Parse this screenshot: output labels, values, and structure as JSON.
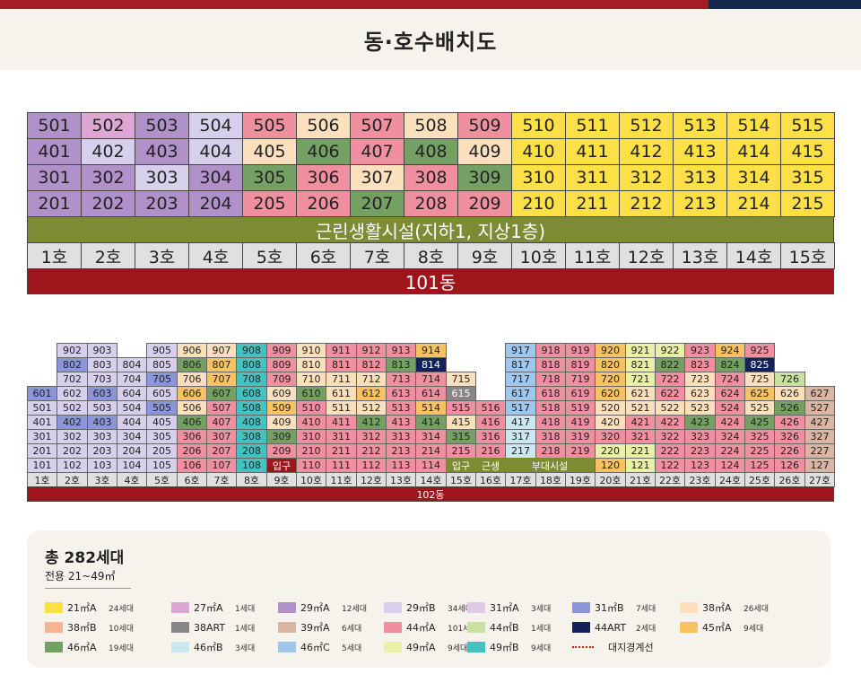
{
  "title": "동·호수배치도",
  "palette": {
    "P29A": "#b091c9",
    "P27A": "#dea6d2",
    "P29B": "#d6d0ec",
    "P44A": "#ef8fa0",
    "P38A": "#f4b592",
    "P38M": "#fce0bd",
    "P46A": "#74a063",
    "P31A": "#dfc9e6",
    "P31B": "#8a96d8",
    "P44ART": "#13235a",
    "P21A": "#fde046",
    "P45A": "#f7c260",
    "P39A": "#d8b6a3",
    "P44B": "#c6e1a0",
    "P46B": "#cde7f1",
    "P46C": "#9fc7ec",
    "P49A": "#e9f0a7",
    "P49B": "#44c2c0",
    "PNONE": "#e0e0e0",
    "PBASE": "#7d8b34",
    "PRED": "#a0151c"
  },
  "building_101": {
    "rows": [
      {
        "units": [
          "501",
          "502",
          "503",
          "504",
          "505",
          "506",
          "507",
          "508",
          "509",
          "510",
          "511",
          "512",
          "513",
          "514",
          "515"
        ],
        "colors": [
          "P29A",
          "P27A",
          "P29A",
          "P29B",
          "P44A",
          "P38M",
          "P44A",
          "P38M",
          "P44A",
          "P21A",
          "P21A",
          "P21A",
          "P21A",
          "P21A",
          "P21A"
        ]
      },
      {
        "units": [
          "401",
          "402",
          "403",
          "404",
          "405",
          "406",
          "407",
          "408",
          "409",
          "410",
          "411",
          "412",
          "413",
          "414",
          "415"
        ],
        "colors": [
          "P29A",
          "P29B",
          "P29A",
          "P29B",
          "P38M",
          "P46A",
          "P44A",
          "P46A",
          "P38M",
          "P21A",
          "P21A",
          "P21A",
          "P21A",
          "P21A",
          "P21A"
        ]
      },
      {
        "units": [
          "301",
          "302",
          "303",
          "304",
          "305",
          "306",
          "307",
          "308",
          "309",
          "310",
          "311",
          "312",
          "313",
          "314",
          "315"
        ],
        "colors": [
          "P29A",
          "P29A",
          "P29B",
          "P29A",
          "P46A",
          "P44A",
          "P38M",
          "P44A",
          "P46A",
          "P21A",
          "P21A",
          "P21A",
          "P21A",
          "P21A",
          "P21A"
        ]
      },
      {
        "units": [
          "201",
          "202",
          "203",
          "204",
          "205",
          "206",
          "207",
          "208",
          "209",
          "210",
          "211",
          "212",
          "213",
          "214",
          "215"
        ],
        "colors": [
          "P29A",
          "P29A",
          "P29A",
          "P29A",
          "P44A",
          "P44A",
          "P46A",
          "P44A",
          "P44A",
          "P21A",
          "P21A",
          "P21A",
          "P21A",
          "P21A",
          "P21A"
        ]
      }
    ],
    "commercial": "근린생활시설(지하1, 지상1층)",
    "lines": [
      "1호",
      "2호",
      "3호",
      "4호",
      "5호",
      "6호",
      "7호",
      "8호",
      "9호",
      "10호",
      "11호",
      "12호",
      "13호",
      "14호",
      "15호"
    ],
    "name": "101동"
  },
  "building_102": {
    "rows": [
      {
        "units": [
          "",
          "902",
          "903",
          "",
          "905",
          "906",
          "907",
          "908",
          "909",
          "910",
          "911",
          "912",
          "913",
          "914",
          "",
          "",
          "917",
          "918",
          "919",
          "920",
          "921",
          "922",
          "923",
          "924",
          "925",
          "",
          ""
        ],
        "colors": [
          "",
          "P29B",
          "P29B",
          "",
          "P29B",
          "P38M",
          "P38M",
          "P49B",
          "P44A",
          "P38M",
          "P44A",
          "P44A",
          "P44A",
          "P45A",
          "",
          "",
          "P46C",
          "P44A",
          "P44A",
          "P45A",
          "P49A",
          "P49A",
          "P44A",
          "P45A",
          "P44A",
          "",
          ""
        ]
      },
      {
        "units": [
          "",
          "802",
          "803",
          "804",
          "805",
          "806",
          "807",
          "808",
          "809",
          "810",
          "811",
          "812",
          "813",
          "814",
          "",
          "",
          "817",
          "818",
          "819",
          "820",
          "821",
          "822",
          "823",
          "824",
          "825",
          "",
          ""
        ],
        "colors": [
          "",
          "P31B",
          "P29B",
          "P29B",
          "P29B",
          "P46A",
          "P45A",
          "P49B",
          "P44A",
          "P38M",
          "P44A",
          "P44A",
          "P46A",
          "P44ART",
          "",
          "",
          "P46C",
          "P44A",
          "P44A",
          "P45A",
          "P49A",
          "P46A",
          "P44A",
          "P46A",
          "P44ART",
          "",
          ""
        ]
      },
      {
        "units": [
          "",
          "702",
          "703",
          "704",
          "705",
          "706",
          "707",
          "708",
          "709",
          "710",
          "711",
          "712",
          "713",
          "714",
          "715",
          "",
          "717",
          "718",
          "719",
          "720",
          "721",
          "722",
          "723",
          "724",
          "725",
          "726",
          ""
        ],
        "colors": [
          "",
          "P29B",
          "P29B",
          "P29B",
          "P31B",
          "P38M",
          "P45A",
          "P49B",
          "P44A",
          "P38M",
          "P38M",
          "P38M",
          "P44A",
          "P44A",
          "P38M",
          "",
          "P46C",
          "P44A",
          "P44A",
          "P45A",
          "P49A",
          "P44A",
          "P38M",
          "P44A",
          "P38M",
          "P44B",
          ""
        ]
      },
      {
        "units": [
          "601",
          "602",
          "603",
          "604",
          "605",
          "606",
          "607",
          "608",
          "609",
          "610",
          "611",
          "612",
          "613",
          "614",
          "615",
          "",
          "617",
          "618",
          "619",
          "620",
          "621",
          "622",
          "623",
          "624",
          "625",
          "626",
          "627"
        ],
        "colors": [
          "P31B",
          "P29B",
          "P31B",
          "P29B",
          "P29B",
          "P45A",
          "P46A",
          "P49B",
          "P38M",
          "P46A",
          "P38M",
          "P45A",
          "P44A",
          "P44A",
          "P38ART",
          "",
          "P46C",
          "P44A",
          "P44A",
          "P45A",
          "P38M",
          "P44A",
          "P38M",
          "P44A",
          "P45A",
          "P38M",
          "P39A"
        ]
      },
      {
        "units": [
          "501",
          "502",
          "503",
          "504",
          "505",
          "506",
          "507",
          "508",
          "509",
          "510",
          "511",
          "512",
          "513",
          "514",
          "515",
          "516",
          "517",
          "518",
          "519",
          "520",
          "521",
          "522",
          "523",
          "524",
          "525",
          "526",
          "527"
        ],
        "colors": [
          "P29B",
          "P29B",
          "P29B",
          "P29B",
          "P31B",
          "P38M",
          "P44A",
          "P49B",
          "P45A",
          "P44A",
          "P38M",
          "P38M",
          "P44A",
          "P45A",
          "P44A",
          "P44A",
          "P46C",
          "P44A",
          "P44A",
          "P38M",
          "P38M",
          "P38M",
          "P38M",
          "P44A",
          "P38M",
          "P46A",
          "P39A"
        ]
      },
      {
        "units": [
          "401",
          "402",
          "403",
          "404",
          "405",
          "406",
          "407",
          "408",
          "409",
          "410",
          "411",
          "412",
          "413",
          "414",
          "415",
          "416",
          "417",
          "418",
          "419",
          "420",
          "421",
          "422",
          "423",
          "424",
          "425",
          "426",
          "427"
        ],
        "colors": [
          "P29B",
          "P31B",
          "P31B",
          "P29B",
          "P29B",
          "P46A",
          "P44A",
          "P49B",
          "P38M",
          "P44A",
          "P44A",
          "P46A",
          "P44A",
          "P46A",
          "P38M",
          "P44A",
          "P46B",
          "P44A",
          "P44A",
          "P38M",
          "P44A",
          "P44A",
          "P46A",
          "P44A",
          "P46A",
          "P44A",
          "P39A"
        ]
      },
      {
        "units": [
          "301",
          "302",
          "303",
          "304",
          "305",
          "306",
          "307",
          "308",
          "309",
          "310",
          "311",
          "312",
          "313",
          "314",
          "315",
          "316",
          "317",
          "318",
          "319",
          "320",
          "321",
          "322",
          "323",
          "324",
          "325",
          "326",
          "327"
        ],
        "colors": [
          "P29B",
          "P29B",
          "P29B",
          "P29B",
          "P29B",
          "P44A",
          "P44A",
          "P49B",
          "P46A",
          "P44A",
          "P44A",
          "P44A",
          "P44A",
          "P44A",
          "P46A",
          "P44A",
          "P46B",
          "P44A",
          "P44A",
          "P44A",
          "P44A",
          "P44A",
          "P44A",
          "P44A",
          "P44A",
          "P44A",
          "P39A"
        ]
      },
      {
        "units": [
          "201",
          "202",
          "203",
          "204",
          "205",
          "206",
          "207",
          "208",
          "209",
          "210",
          "211",
          "212",
          "213",
          "214",
          "215",
          "216",
          "217",
          "218",
          "219",
          "220",
          "221",
          "222",
          "223",
          "224",
          "225",
          "226",
          "227"
        ],
        "colors": [
          "P29B",
          "P29B",
          "P29B",
          "P29B",
          "P29B",
          "P44A",
          "P44A",
          "P49B",
          "P44A",
          "P44A",
          "P44A",
          "P44A",
          "P44A",
          "P44A",
          "P44A",
          "P44A",
          "P46B",
          "P44A",
          "P44A",
          "P49A",
          "P49A",
          "P44A",
          "P44A",
          "P44A",
          "P44A",
          "P44A",
          "P39A"
        ]
      },
      {
        "units": [
          "101",
          "102",
          "103",
          "104",
          "105",
          "106",
          "107",
          "108",
          "입구",
          "110",
          "111",
          "112",
          "113",
          "114",
          "입구",
          "근생",
          "",
          "",
          "",
          "120",
          "121",
          "122",
          "123",
          "124",
          "125",
          "126",
          "127"
        ],
        "colors": [
          "P29B",
          "P29B",
          "P29B",
          "P29B",
          "P29B",
          "P44A",
          "P44A",
          "P49B",
          "PRED",
          "P44A",
          "P44A",
          "P44A",
          "P44A",
          "P44A",
          "PBASE",
          "PBASE",
          "PBASE",
          "PBASE",
          "PBASE",
          "P45A",
          "P49A",
          "P44A",
          "P44A",
          "P44A",
          "P44A",
          "P44A",
          "P39A"
        ]
      }
    ],
    "facility_label": "부대시설",
    "lines": [
      "1호",
      "2호",
      "3호",
      "4호",
      "5호",
      "6호",
      "7호",
      "8호",
      "9호",
      "10호",
      "11호",
      "12호",
      "13호",
      "14호",
      "15호",
      "16호",
      "17호",
      "18호",
      "19호",
      "20호",
      "21호",
      "22호",
      "23호",
      "24호",
      "25호",
      "26호",
      "27호"
    ],
    "name": "102동"
  },
  "legend": {
    "total": "총 282세대",
    "area_range": "전용 21~49㎡",
    "items": [
      {
        "name": "21㎡A",
        "count": "24세대",
        "color": "P21A"
      },
      {
        "name": "27㎡A",
        "count": "1세대",
        "color": "P27A"
      },
      {
        "name": "29㎡A",
        "count": "12세대",
        "color": "P29A"
      },
      {
        "name": "29㎡B",
        "count": "34세대",
        "color": "P29B"
      },
      {
        "name": "31㎡A",
        "count": "3세대",
        "color": "P31A"
      },
      {
        "name": "31㎡B",
        "count": "7세대",
        "color": "P31B"
      },
      {
        "name": "38㎡A",
        "count": "26세대",
        "color": "P38M"
      },
      {
        "name": "38㎡B",
        "count": "10세대",
        "color": "P38A"
      },
      {
        "name": "38ART",
        "count": "1세대",
        "color": "P38ART"
      },
      {
        "name": "39㎡A",
        "count": "6세대",
        "color": "P39A"
      },
      {
        "name": "44㎡A",
        "count": "101세대",
        "color": "P44A"
      },
      {
        "name": "44㎡B",
        "count": "1세대",
        "color": "P44B"
      },
      {
        "name": "44ART",
        "count": "2세대",
        "color": "P44ART"
      },
      {
        "name": "45㎡A",
        "count": "9세대",
        "color": "P45A"
      },
      {
        "name": "46㎡A",
        "count": "19세대",
        "color": "P46A"
      },
      {
        "name": "46㎡B",
        "count": "3세대",
        "color": "P46B"
      },
      {
        "name": "46㎡C",
        "count": "5세대",
        "color": "P46C"
      },
      {
        "name": "49㎡A",
        "count": "9세대",
        "color": "P49A"
      },
      {
        "name": "49㎡B",
        "count": "9세대",
        "color": "P49B"
      },
      {
        "name": "대지경계선",
        "count": "",
        "color": "dash"
      }
    ]
  }
}
